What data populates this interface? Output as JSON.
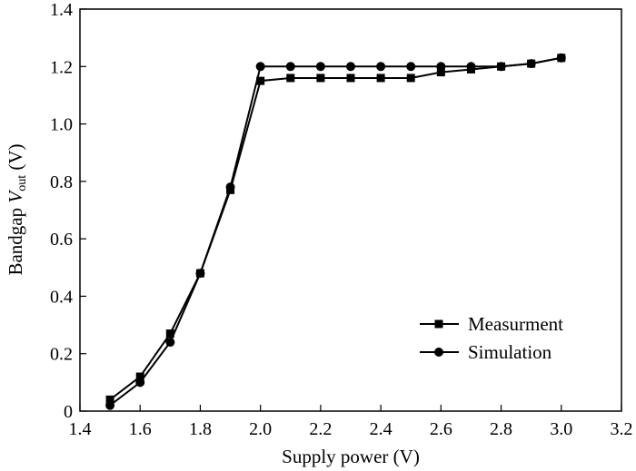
{
  "chart_data": {
    "type": "line",
    "xlabel": "Supply power (V)",
    "ylabel_main": "Bandgap ",
    "ylabel_var": "V",
    "ylabel_sub": "out",
    "ylabel_unit": " (V)",
    "xlim": [
      1.4,
      3.2
    ],
    "ylim": [
      0,
      1.4
    ],
    "x_ticks": [
      "1.4",
      "1.6",
      "1.8",
      "2.0",
      "2.2",
      "2.4",
      "2.6",
      "2.8",
      "3.0",
      "3.2"
    ],
    "y_ticks": [
      "0",
      "0.2",
      "0.4",
      "0.6",
      "0.8",
      "1.0",
      "1.2",
      "1.4"
    ],
    "grid": false,
    "legend_position": "bottom-right",
    "series": [
      {
        "name": "Measurment",
        "marker": "square",
        "x": [
          1.5,
          1.6,
          1.7,
          1.8,
          1.9,
          2.0,
          2.1,
          2.2,
          2.3,
          2.4,
          2.5,
          2.6,
          2.7,
          2.8,
          2.9,
          3.0
        ],
        "y": [
          0.04,
          0.12,
          0.27,
          0.48,
          0.77,
          1.15,
          1.16,
          1.16,
          1.16,
          1.16,
          1.16,
          1.18,
          1.19,
          1.2,
          1.21,
          1.23
        ]
      },
      {
        "name": "Simulation",
        "marker": "circle",
        "x": [
          1.5,
          1.6,
          1.7,
          1.8,
          1.9,
          2.0,
          2.1,
          2.2,
          2.3,
          2.4,
          2.5,
          2.6,
          2.7,
          2.8,
          2.9,
          3.0
        ],
        "y": [
          0.02,
          0.1,
          0.24,
          0.48,
          0.78,
          1.2,
          1.2,
          1.2,
          1.2,
          1.2,
          1.2,
          1.2,
          1.2,
          1.2,
          1.21,
          1.23
        ]
      }
    ]
  }
}
